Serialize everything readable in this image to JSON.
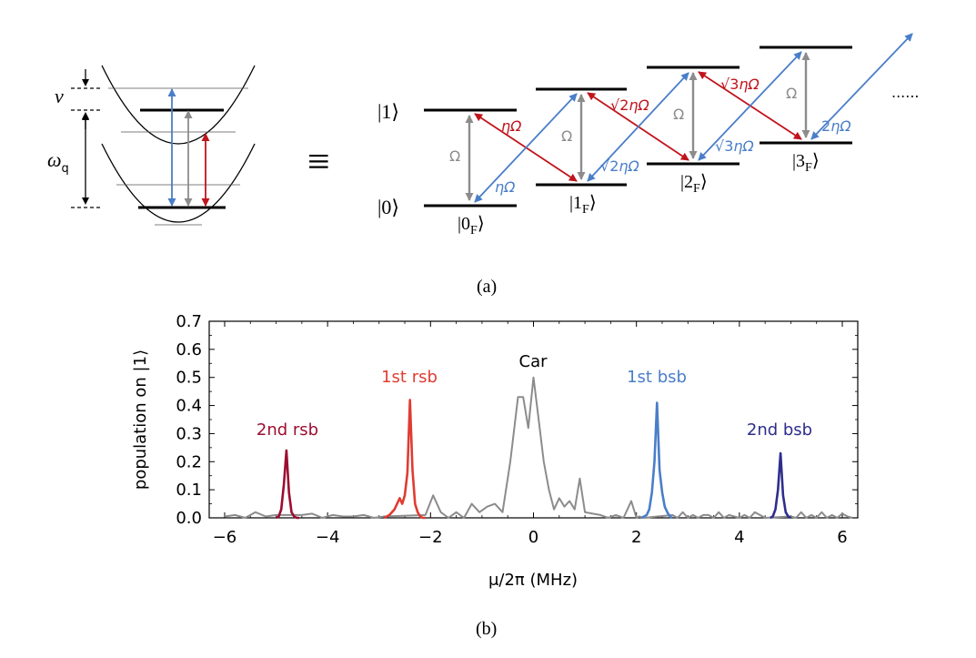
{
  "panel_a": {
    "caption": "(a)",
    "label_nu": "ν",
    "label_omega": "ω",
    "label_omega_sub": "q",
    "equiv_symbol": "≡",
    "ket_1": "|1⟩",
    "ket_0": "|0⟩",
    "ket_open": "|",
    "ket_close": "⟩",
    "fock_sub": "F",
    "fock_levels": [
      "0",
      "1",
      "2",
      "3"
    ],
    "omega_label": "Ω",
    "red_labels": [
      "ηΩ",
      "ηΩ",
      "ηΩ"
    ],
    "red_prefixes": [
      "",
      "√2",
      "√3"
    ],
    "blue_labels": [
      "ηΩ",
      "ηΩ",
      "ηΩ",
      "ηΩ"
    ],
    "blue_prefixes": [
      "",
      "√2",
      "√3",
      "2"
    ],
    "ellipsis": "......",
    "colors": {
      "red": "#c0141c",
      "blue": "#4a7ec8",
      "gray": "#8c8c8c",
      "black": "#000000"
    }
  },
  "panel_b": {
    "caption": "(b)",
    "peak_labels": [
      {
        "text": "2nd rsb",
        "color": "#9b0e30"
      },
      {
        "text": "1st rsb",
        "color": "#e03c32"
      },
      {
        "text": "Car",
        "color": "#000000"
      },
      {
        "text": "1st bsb",
        "color": "#4a7ec8"
      },
      {
        "text": "2nd bsb",
        "color": "#2e2e8c"
      }
    ]
  },
  "chart_data": {
    "type": "line",
    "xlabel": "μ/2π (MHz)",
    "ylabel": "population on |1⟩",
    "xlim": [
      -6.3,
      6.3
    ],
    "ylim": [
      0,
      0.7
    ],
    "xticks": [
      -6,
      -4,
      -2,
      0,
      2,
      4,
      6
    ],
    "yticks": [
      0.0,
      0.1,
      0.2,
      0.3,
      0.4,
      0.5,
      0.6,
      0.7
    ],
    "xtick_labels": [
      "−6",
      "−4",
      "−2",
      "0",
      "2",
      "4",
      "6"
    ],
    "ytick_labels": [
      "0.0",
      "0.1",
      "0.2",
      "0.3",
      "0.4",
      "0.5",
      "0.6",
      "0.7"
    ],
    "series": [
      {
        "name": "Car",
        "color": "#8c8c8c",
        "x": [
          -6.0,
          -5.8,
          -5.6,
          -5.4,
          -5.2,
          -5.0,
          -4.5,
          -4.3,
          -4.1,
          -3.9,
          -3.7,
          -3.5,
          -3.3,
          -3.1,
          -2.9,
          -2.1,
          -1.95,
          -1.8,
          -1.65,
          -1.5,
          -1.35,
          -1.2,
          -1.05,
          -0.9,
          -0.75,
          -0.6,
          -0.45,
          -0.3,
          -0.2,
          -0.1,
          0.0,
          0.1,
          0.2,
          0.3,
          0.4,
          0.5,
          0.6,
          0.7,
          0.8,
          0.9,
          1.0,
          1.15,
          1.3,
          1.45,
          1.6,
          1.75,
          1.9,
          2.0,
          2.05,
          2.15,
          2.7,
          2.8,
          2.9,
          3.0,
          3.1,
          3.2,
          3.3,
          3.4,
          3.5,
          3.6,
          3.7,
          3.8,
          3.9,
          4.0,
          4.1,
          4.2,
          4.3,
          4.4,
          4.5,
          5.0,
          5.1,
          5.2,
          5.3,
          5.4,
          5.5,
          5.6,
          5.7,
          5.8,
          5.9,
          6.0,
          6.1,
          6.2
        ],
        "y": [
          0.005,
          0.01,
          0.0,
          0.02,
          0.005,
          0.01,
          0.01,
          0.015,
          0.0,
          0.01,
          0.005,
          0.005,
          0.01,
          0.0,
          0.005,
          0.01,
          0.08,
          0.02,
          0.0,
          0.02,
          0.0,
          0.05,
          0.02,
          0.04,
          0.05,
          0.02,
          0.2,
          0.43,
          0.43,
          0.32,
          0.5,
          0.35,
          0.2,
          0.1,
          0.03,
          0.07,
          0.04,
          0.06,
          0.03,
          0.14,
          0.02,
          0.015,
          0.01,
          0.0,
          0.01,
          0.0,
          0.06,
          0.0,
          0.005,
          0.0,
          0.01,
          0.0,
          0.02,
          0.0,
          0.01,
          0.0,
          0.01,
          0.01,
          0.0,
          0.02,
          0.0,
          0.01,
          0.005,
          0.0,
          0.01,
          0.0,
          0.02,
          0.01,
          0.0,
          0.005,
          0.0,
          0.02,
          0.0,
          0.01,
          0.0,
          0.02,
          0.0,
          0.01,
          0.0,
          0.015,
          0.005,
          0.0
        ]
      },
      {
        "name": "2nd rsb",
        "color": "#9b0e30",
        "x": [
          -5.0,
          -4.95,
          -4.9,
          -4.85,
          -4.8,
          -4.75,
          -4.7,
          -4.65,
          -4.6,
          -4.55
        ],
        "y": [
          0.0,
          0.005,
          0.03,
          0.12,
          0.24,
          0.09,
          0.02,
          0.005,
          0.0,
          0.0
        ]
      },
      {
        "name": "1st rsb",
        "color": "#e03c32",
        "x": [
          -2.9,
          -2.8,
          -2.7,
          -2.6,
          -2.55,
          -2.5,
          -2.45,
          -2.4,
          -2.35,
          -2.3,
          -2.25,
          -2.2,
          -2.15,
          -2.1
        ],
        "y": [
          0.0,
          0.01,
          0.03,
          0.07,
          0.05,
          0.08,
          0.16,
          0.42,
          0.17,
          0.05,
          0.02,
          0.005,
          0.0,
          0.0
        ]
      },
      {
        "name": "1st bsb",
        "color": "#4a7ec8",
        "x": [
          2.1,
          2.2,
          2.25,
          2.3,
          2.35,
          2.4,
          2.45,
          2.5,
          2.55,
          2.6,
          2.65,
          2.7
        ],
        "y": [
          0.0,
          0.01,
          0.03,
          0.09,
          0.2,
          0.41,
          0.17,
          0.09,
          0.04,
          0.02,
          0.005,
          0.0
        ]
      },
      {
        "name": "2nd bsb",
        "color": "#2e2e8c",
        "x": [
          4.6,
          4.65,
          4.7,
          4.75,
          4.8,
          4.85,
          4.9,
          4.95,
          5.0
        ],
        "y": [
          0.0,
          0.005,
          0.03,
          0.1,
          0.23,
          0.08,
          0.02,
          0.005,
          0.0
        ]
      }
    ]
  }
}
